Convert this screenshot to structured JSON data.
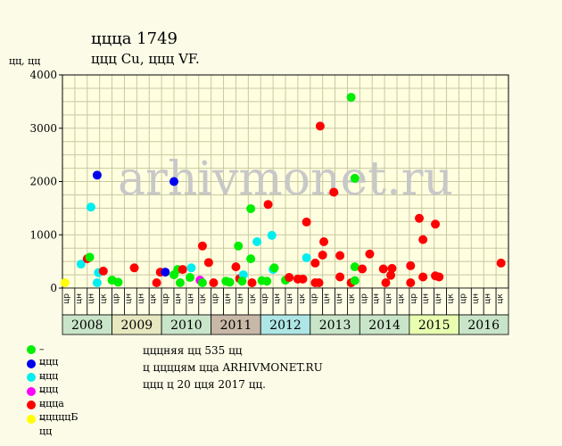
{
  "header": {
    "title": "ццца 1749",
    "subtitle": "ццц Cu, ццц VF.",
    "y_unit": "цц, цц"
  },
  "watermark": "arhivmonet.ru",
  "colors": {
    "background": "#fbfbe7",
    "plot_bg": "#ffffe0",
    "grid": "#c8c8a0",
    "year_band_a": "#c9e5c9",
    "year_band_b": "#c8b8a8",
    "year_band_c": "#aee6e6"
  },
  "legend": [
    {
      "color": "#00ee00",
      "label": "– ццц"
    },
    {
      "color": "#0000ee",
      "label": "– ццц"
    },
    {
      "color": "#00eeee",
      "label": "– ццц"
    },
    {
      "color": "#ff00ff",
      "label": "– ццца"
    },
    {
      "color": "#ff0000",
      "label": "– цццццБ"
    },
    {
      "color": "#ffff00",
      "label": "– цц"
    }
  ],
  "info": {
    "line1": "цццняя цц 535 цц",
    "line2": "ц ццццям ццa ARHIVMONET.RU",
    "line3": "ццц ц 20 цця 2017 цц."
  },
  "chart_data": {
    "type": "scatter",
    "ylim": [
      0,
      4000
    ],
    "yticks": [
      0,
      1000,
      2000,
      3000,
      4000
    ],
    "grid": true,
    "quarter_labels": [
      "цр",
      "цн",
      "цн",
      "цк",
      "цр",
      "цн",
      "цн",
      "цк",
      "цр",
      "цн",
      "цн",
      "цк",
      "цр",
      "цн",
      "цн",
      "цк",
      "цр",
      "цн",
      "цн",
      "цк",
      "цр",
      "цн",
      "цн",
      "цк",
      "цр",
      "цн",
      "цн",
      "цк",
      "цр",
      "цн",
      "цн",
      "цк",
      "цр",
      "цн",
      "цн",
      "цк"
    ],
    "years": [
      {
        "label": "2008",
        "color": "#c9e5c9"
      },
      {
        "label": "2009",
        "color": "#e8e8c0"
      },
      {
        "label": "2010",
        "color": "#c9e5c9"
      },
      {
        "label": "2011",
        "color": "#c8b8a8"
      },
      {
        "label": "2012",
        "color": "#aee6e6"
      },
      {
        "label": "2013",
        "color": "#c9e5c9"
      },
      {
        "label": "2014",
        "color": "#c9e5c9"
      },
      {
        "label": "2015",
        "color": "#e8ffb0"
      },
      {
        "label": "2016",
        "color": "#c9e5c9"
      }
    ],
    "x_range": [
      0,
      36
    ],
    "points": [
      {
        "x": 0.2,
        "y": 100,
        "grade": "цц",
        "color": "#ffff00"
      },
      {
        "x": 1.5,
        "y": 450,
        "grade": "ццц",
        "color": "#00eeee"
      },
      {
        "x": 2.0,
        "y": 550,
        "grade": "ццццБ",
        "color": "#ff0000"
      },
      {
        "x": 2.2,
        "y": 580,
        "grade": "ццц",
        "color": "#00ee00"
      },
      {
        "x": 2.3,
        "y": 1520,
        "grade": "ццц",
        "color": "#00eeee"
      },
      {
        "x": 2.8,
        "y": 2120,
        "grade": "ццц",
        "color": "#0000ee"
      },
      {
        "x": 2.8,
        "y": 100,
        "grade": "ццц",
        "color": "#00eeee"
      },
      {
        "x": 2.9,
        "y": 290,
        "grade": "ццц",
        "color": "#00eeee"
      },
      {
        "x": 3.3,
        "y": 320,
        "grade": "цццццБ",
        "color": "#ff0000"
      },
      {
        "x": 4.0,
        "y": 150,
        "grade": "ццц",
        "color": "#00ee00"
      },
      {
        "x": 4.5,
        "y": 110,
        "grade": "ццц",
        "color": "#00ee00"
      },
      {
        "x": 5.8,
        "y": 380,
        "grade": "цццццБ",
        "color": "#ff0000"
      },
      {
        "x": 7.6,
        "y": 100,
        "grade": "цццццБ",
        "color": "#ff0000"
      },
      {
        "x": 7.9,
        "y": 300,
        "grade": "цццццБ",
        "color": "#ff0000"
      },
      {
        "x": 8.3,
        "y": 300,
        "grade": "ццц",
        "color": "#0000ee"
      },
      {
        "x": 9.0,
        "y": 2000,
        "grade": "ццц",
        "color": "#0000ee"
      },
      {
        "x": 9.0,
        "y": 250,
        "grade": "ццц",
        "color": "#00ee00"
      },
      {
        "x": 9.3,
        "y": 350,
        "grade": "ццц",
        "color": "#00ee00"
      },
      {
        "x": 9.5,
        "y": 100,
        "grade": "ццц",
        "color": "#00ee00"
      },
      {
        "x": 9.7,
        "y": 350,
        "grade": "цццццБ",
        "color": "#ff0000"
      },
      {
        "x": 10.3,
        "y": 200,
        "grade": "ццц",
        "color": "#00ee00"
      },
      {
        "x": 10.4,
        "y": 380,
        "grade": "ццц",
        "color": "#00eeee"
      },
      {
        "x": 11.1,
        "y": 150,
        "grade": "ццца",
        "color": "#ff00ff"
      },
      {
        "x": 11.3,
        "y": 790,
        "grade": "цццццБ",
        "color": "#ff0000"
      },
      {
        "x": 11.3,
        "y": 100,
        "grade": "ццц",
        "color": "#00ee00"
      },
      {
        "x": 11.8,
        "y": 480,
        "grade": "цццццБ",
        "color": "#ff0000"
      },
      {
        "x": 12.2,
        "y": 100,
        "grade": "цццццБ",
        "color": "#ff0000"
      },
      {
        "x": 13.2,
        "y": 130,
        "grade": "ццц",
        "color": "#00ee00"
      },
      {
        "x": 13.5,
        "y": 110,
        "grade": "ццц",
        "color": "#00ee00"
      },
      {
        "x": 14.0,
        "y": 400,
        "grade": "цццццБ",
        "color": "#ff0000"
      },
      {
        "x": 14.2,
        "y": 790,
        "grade": "ццц",
        "color": "#00ee00"
      },
      {
        "x": 14.3,
        "y": 180,
        "grade": "цццццБ",
        "color": "#ff0000"
      },
      {
        "x": 14.6,
        "y": 250,
        "grade": "ццц",
        "color": "#00eeee"
      },
      {
        "x": 14.5,
        "y": 130,
        "grade": "ццц",
        "color": "#00ee00"
      },
      {
        "x": 15.2,
        "y": 1490,
        "grade": "ццц",
        "color": "#00ee00"
      },
      {
        "x": 15.2,
        "y": 550,
        "grade": "ццц",
        "color": "#00ee00"
      },
      {
        "x": 15.3,
        "y": 100,
        "grade": "цццццБ",
        "color": "#ff0000"
      },
      {
        "x": 15.7,
        "y": 870,
        "grade": "ццц",
        "color": "#00eeee"
      },
      {
        "x": 16.1,
        "y": 140,
        "grade": "ццц",
        "color": "#00ee00"
      },
      {
        "x": 16.5,
        "y": 130,
        "grade": "ццц",
        "color": "#00ee00"
      },
      {
        "x": 16.6,
        "y": 1570,
        "grade": "цццццБ",
        "color": "#ff0000"
      },
      {
        "x": 16.9,
        "y": 990,
        "grade": "ццц",
        "color": "#00eeee"
      },
      {
        "x": 17.0,
        "y": 350,
        "grade": "ццц",
        "color": "#00eeee"
      },
      {
        "x": 17.1,
        "y": 380,
        "grade": "ццц",
        "color": "#00ee00"
      },
      {
        "x": 18.0,
        "y": 150,
        "grade": "ццц",
        "color": "#00ee00"
      },
      {
        "x": 18.3,
        "y": 200,
        "grade": "цццццБ",
        "color": "#ff0000"
      },
      {
        "x": 19.0,
        "y": 170,
        "grade": "цццццБ",
        "color": "#ff0000"
      },
      {
        "x": 19.4,
        "y": 170,
        "grade": "цццццБ",
        "color": "#ff0000"
      },
      {
        "x": 19.7,
        "y": 570,
        "grade": "ццц",
        "color": "#00eeee"
      },
      {
        "x": 19.7,
        "y": 1240,
        "grade": "цццццБ",
        "color": "#ff0000"
      },
      {
        "x": 20.4,
        "y": 470,
        "grade": "цццццБ",
        "color": "#ff0000"
      },
      {
        "x": 20.4,
        "y": 100,
        "grade": "цццццБ",
        "color": "#ff0000"
      },
      {
        "x": 20.7,
        "y": 100,
        "grade": "цццццБ",
        "color": "#ff0000"
      },
      {
        "x": 20.8,
        "y": 3040,
        "grade": "цццццБ",
        "color": "#ff0000"
      },
      {
        "x": 21.0,
        "y": 620,
        "grade": "цццццБ",
        "color": "#ff0000"
      },
      {
        "x": 21.1,
        "y": 870,
        "grade": "цццццБ",
        "color": "#ff0000"
      },
      {
        "x": 21.9,
        "y": 1800,
        "grade": "цццццБ",
        "color": "#ff0000"
      },
      {
        "x": 22.4,
        "y": 610,
        "grade": "цццццБ",
        "color": "#ff0000"
      },
      {
        "x": 22.4,
        "y": 210,
        "grade": "цццццБ",
        "color": "#ff0000"
      },
      {
        "x": 23.3,
        "y": 3580,
        "grade": "ццц",
        "color": "#00ee00"
      },
      {
        "x": 23.3,
        "y": 100,
        "grade": "цццццБ",
        "color": "#ff0000"
      },
      {
        "x": 23.6,
        "y": 2060,
        "grade": "ццц",
        "color": "#00ee00"
      },
      {
        "x": 23.6,
        "y": 400,
        "grade": "ццц",
        "color": "#00ee00"
      },
      {
        "x": 23.6,
        "y": 140,
        "grade": "ццц",
        "color": "#00ee00"
      },
      {
        "x": 24.2,
        "y": 360,
        "grade": "цццццБ",
        "color": "#ff0000"
      },
      {
        "x": 24.8,
        "y": 640,
        "grade": "цццццБ",
        "color": "#ff0000"
      },
      {
        "x": 25.9,
        "y": 360,
        "grade": "цццццБ",
        "color": "#ff0000"
      },
      {
        "x": 26.1,
        "y": 100,
        "grade": "цццццБ",
        "color": "#ff0000"
      },
      {
        "x": 26.6,
        "y": 370,
        "grade": "цццццБ",
        "color": "#ff0000"
      },
      {
        "x": 26.5,
        "y": 240,
        "grade": "цццццБ",
        "color": "#ff0000"
      },
      {
        "x": 28.1,
        "y": 420,
        "grade": "цццццБ",
        "color": "#ff0000"
      },
      {
        "x": 28.1,
        "y": 100,
        "grade": "цццццБ",
        "color": "#ff0000"
      },
      {
        "x": 28.8,
        "y": 1310,
        "grade": "цццццБ",
        "color": "#ff0000"
      },
      {
        "x": 29.1,
        "y": 910,
        "grade": "цццццБ",
        "color": "#ff0000"
      },
      {
        "x": 29.1,
        "y": 210,
        "grade": "цццццБ",
        "color": "#ff0000"
      },
      {
        "x": 30.1,
        "y": 1200,
        "grade": "цццццБ",
        "color": "#ff0000"
      },
      {
        "x": 30.1,
        "y": 230,
        "grade": "цццццБ",
        "color": "#ff0000"
      },
      {
        "x": 30.4,
        "y": 210,
        "grade": "цццццБ",
        "color": "#ff0000"
      },
      {
        "x": 35.4,
        "y": 470,
        "grade": "цццццБ",
        "color": "#ff0000"
      }
    ]
  }
}
